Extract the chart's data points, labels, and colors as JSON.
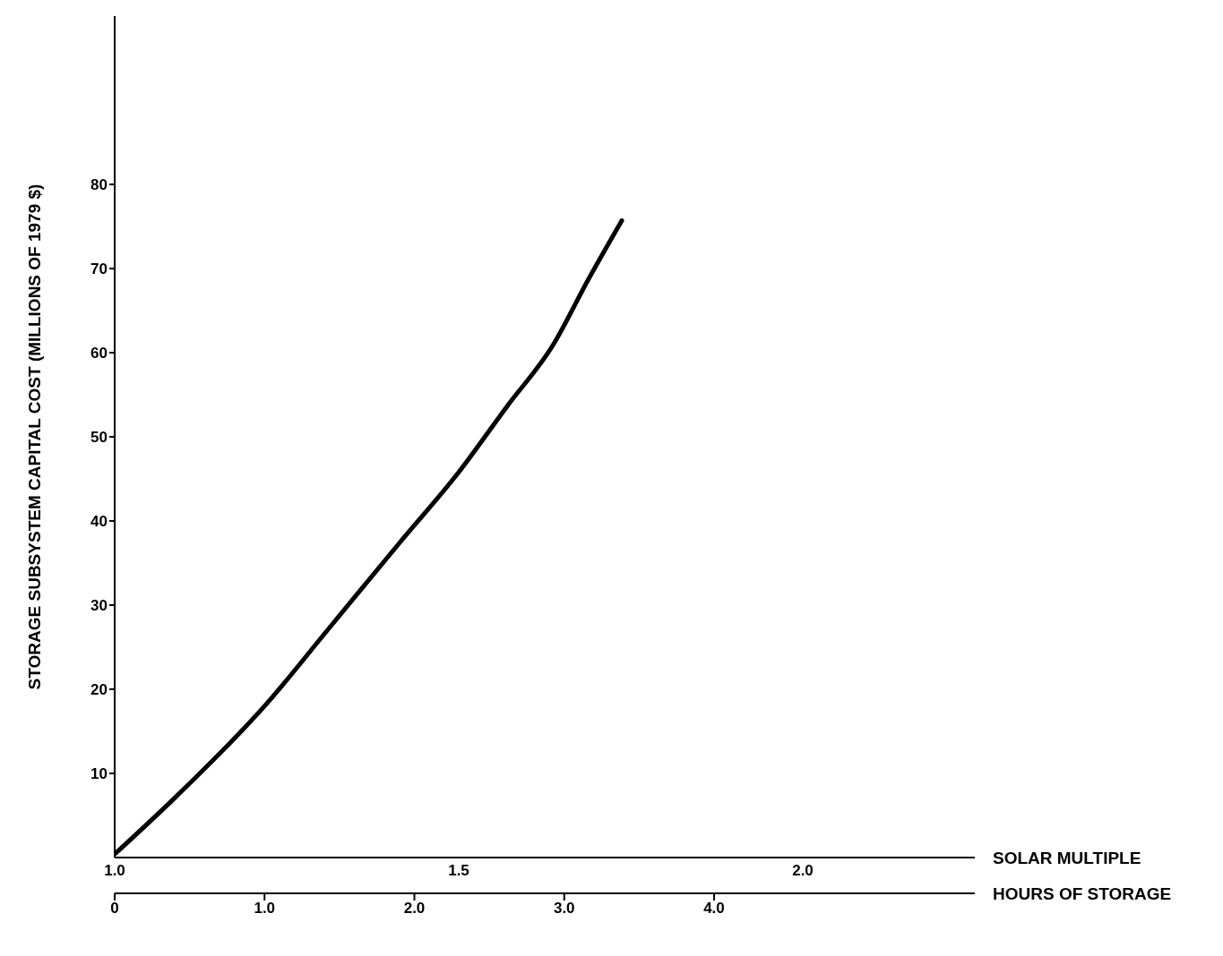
{
  "chart_data": {
    "type": "line",
    "xlabel": "SOLAR MULTIPLE",
    "x2label": "HOURS OF STORAGE",
    "ylabel": "STORAGE SUBSYSTEM CAPITAL COST (MILLIONS OF 1979 $)",
    "x": [
      1.0,
      1.09,
      1.22,
      1.31,
      1.415,
      1.5,
      1.57,
      1.637,
      1.689,
      1.737
    ],
    "series": [
      {
        "color": "#000000",
        "values": [
          0.4,
          7.3,
          18.2,
          27.1,
          37.5,
          45.8,
          53.6,
          60.9,
          68.8,
          75.7
        ]
      }
    ],
    "xlim": [
      1.0,
      2.25
    ],
    "xticks": [
      {
        "value": 1,
        "label": "1.0"
      },
      1.5,
      {
        "value": 2,
        "label": "2.0"
      }
    ],
    "x2lim": [
      0,
      5.74
    ],
    "x2ticks": [
      0,
      {
        "value": 1,
        "label": "1.0"
      },
      {
        "value": 2,
        "label": "2.0"
      },
      {
        "value": 3,
        "label": "3.0"
      },
      {
        "value": 4,
        "label": "4.0"
      }
    ],
    "ylim": [
      0,
      100
    ],
    "yticks": [
      10,
      20,
      30,
      40,
      50,
      60,
      70,
      80
    ],
    "grid": false,
    "marker": "none",
    "line_style": "solid"
  }
}
